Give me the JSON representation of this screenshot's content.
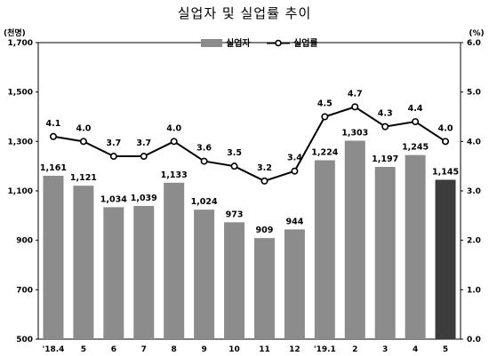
{
  "title": "실업자 및 실업률 추이",
  "chart_data": {
    "type": "bar+line",
    "categories": [
      "'18.4",
      "5",
      "6",
      "7",
      "8",
      "9",
      "10",
      "11",
      "12",
      "'19.1",
      "2",
      "3",
      "4",
      "5"
    ],
    "series": [
      {
        "name": "실업자",
        "type": "bar",
        "axis": "left",
        "values": [
          1161,
          1121,
          1034,
          1039,
          1133,
          1024,
          973,
          909,
          944,
          1224,
          1303,
          1197,
          1245,
          1145
        ],
        "labels": [
          "1,161",
          "1,121",
          "1,034",
          "1,039",
          "1,133",
          "1,024",
          "973",
          "909",
          "944",
          "1,224",
          "1,303",
          "1,197",
          "1,245",
          "1,145"
        ],
        "color": "#8c8c8c",
        "highlight_color": "#3c3c3c",
        "highlight_index": 13
      },
      {
        "name": "실업률",
        "type": "line",
        "axis": "right",
        "values": [
          4.1,
          4.0,
          3.7,
          3.7,
          4.0,
          3.6,
          3.5,
          3.2,
          3.4,
          4.5,
          4.7,
          4.3,
          4.4,
          4.0
        ],
        "labels": [
          "4.1",
          "4.0",
          "3.7",
          "3.7",
          "4.0",
          "3.6",
          "3.5",
          "3.2",
          "3.4",
          "4.5",
          "4.7",
          "4.3",
          "4.4",
          "4.0"
        ],
        "color": "#000000"
      }
    ],
    "left_axis": {
      "unit_label": "(천명)",
      "ylim": [
        500,
        1700
      ],
      "ticks": [
        500,
        700,
        900,
        1100,
        1300,
        1500,
        1700
      ],
      "tick_labels": [
        "500",
        "700",
        "900",
        "1,100",
        "1,300",
        "1,500",
        "1,700"
      ]
    },
    "right_axis": {
      "unit_label": "(%)",
      "ylim": [
        0,
        6
      ],
      "ticks": [
        0,
        1,
        2,
        3,
        4,
        5,
        6
      ],
      "tick_labels": [
        "0.0",
        "1.0",
        "2.0",
        "3.0",
        "4.0",
        "5.0",
        "6.0"
      ]
    },
    "legend_position": "top-center",
    "grid": false
  }
}
